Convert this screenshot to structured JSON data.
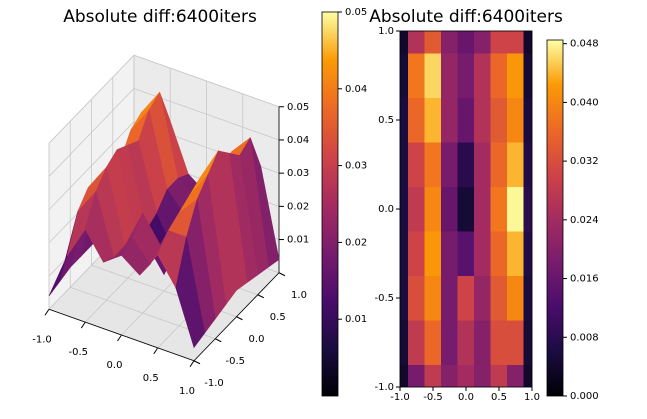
{
  "chart_data": [
    {
      "type": "surface",
      "title": "Absolute diff:6400iters",
      "colormap": "inferno",
      "x": [
        -1,
        -0.75,
        -0.5,
        -0.25,
        0,
        0.25,
        0.5,
        0.75,
        1
      ],
      "y": [
        -1,
        -0.75,
        -0.5,
        -0.25,
        0,
        0.25,
        0.5,
        0.75,
        1
      ],
      "z": [
        [
          0.004,
          0.018,
          0.028,
          0.02,
          0.024,
          0.02,
          0.028,
          0.02,
          0.004
        ],
        [
          0.005,
          0.028,
          0.036,
          0.018,
          0.026,
          0.02,
          0.032,
          0.032,
          0.005
        ],
        [
          0.006,
          0.032,
          0.04,
          0.018,
          0.03,
          0.022,
          0.034,
          0.04,
          0.006
        ],
        [
          0.006,
          0.03,
          0.042,
          0.018,
          0.014,
          0.024,
          0.036,
          0.044,
          0.007
        ],
        [
          0.006,
          0.028,
          0.04,
          0.016,
          0.005,
          0.024,
          0.038,
          0.048,
          0.008
        ],
        [
          0.006,
          0.03,
          0.038,
          0.018,
          0.008,
          0.024,
          0.036,
          0.044,
          0.007
        ],
        [
          0.006,
          0.036,
          0.044,
          0.022,
          0.016,
          0.026,
          0.034,
          0.04,
          0.006
        ],
        [
          0.005,
          0.038,
          0.046,
          0.022,
          0.018,
          0.026,
          0.036,
          0.042,
          0.005
        ],
        [
          0.004,
          0.026,
          0.034,
          0.02,
          0.016,
          0.02,
          0.03,
          0.03,
          0.004
        ]
      ],
      "xlim": [
        -1,
        1
      ],
      "ylim": [
        -1,
        1
      ],
      "zlim": [
        0,
        0.05
      ],
      "xticks": [
        {
          "value": -1,
          "label": "-1.0"
        },
        {
          "value": -0.5,
          "label": "-0.5"
        },
        {
          "value": 0,
          "label": "0.0"
        },
        {
          "value": 0.5,
          "label": "0.5"
        },
        {
          "value": 1,
          "label": "1.0"
        }
      ],
      "yticks": [
        {
          "value": -1,
          "label": "-1.0"
        },
        {
          "value": -0.5,
          "label": "-0.5"
        },
        {
          "value": 0,
          "label": "0.0"
        },
        {
          "value": 0.5,
          "label": "0.5"
        },
        {
          "value": 1,
          "label": "1.0"
        }
      ],
      "zticks": [
        0.01,
        0.02,
        0.03,
        0.04,
        0.05
      ],
      "clim": [
        0,
        0.05
      ],
      "colorbar_ticks": [
        0.01,
        0.02,
        0.03,
        0.04,
        0.05
      ],
      "grid": true
    },
    {
      "type": "contour",
      "title": "Absolute diff:6400iters",
      "colormap": "inferno",
      "x": [
        -1,
        -0.75,
        -0.5,
        -0.25,
        0,
        0.25,
        0.5,
        0.75,
        1
      ],
      "y": [
        -1,
        -0.75,
        -0.5,
        -0.25,
        0,
        0.25,
        0.5,
        0.75,
        1
      ],
      "z": [
        [
          0.004,
          0.018,
          0.028,
          0.02,
          0.024,
          0.02,
          0.028,
          0.02,
          0.004
        ],
        [
          0.005,
          0.028,
          0.036,
          0.018,
          0.026,
          0.02,
          0.032,
          0.032,
          0.005
        ],
        [
          0.006,
          0.032,
          0.04,
          0.018,
          0.03,
          0.022,
          0.034,
          0.04,
          0.006
        ],
        [
          0.006,
          0.03,
          0.042,
          0.018,
          0.014,
          0.024,
          0.036,
          0.044,
          0.007
        ],
        [
          0.006,
          0.028,
          0.04,
          0.016,
          0.005,
          0.024,
          0.038,
          0.048,
          0.008
        ],
        [
          0.006,
          0.03,
          0.038,
          0.018,
          0.008,
          0.024,
          0.036,
          0.044,
          0.007
        ],
        [
          0.006,
          0.036,
          0.044,
          0.022,
          0.016,
          0.026,
          0.034,
          0.04,
          0.006
        ],
        [
          0.005,
          0.038,
          0.046,
          0.022,
          0.018,
          0.026,
          0.036,
          0.042,
          0.005
        ],
        [
          0.004,
          0.026,
          0.034,
          0.02,
          0.016,
          0.02,
          0.03,
          0.03,
          0.004
        ]
      ],
      "xlim": [
        -1,
        1
      ],
      "ylim": [
        -1,
        1
      ],
      "xticks": [
        {
          "value": -1,
          "label": "-1.0"
        },
        {
          "value": -0.5,
          "label": "-0.5"
        },
        {
          "value": 0,
          "label": "0.0"
        },
        {
          "value": 0.5,
          "label": "0.5"
        },
        {
          "value": 1,
          "label": "1.0"
        }
      ],
      "yticks": [
        {
          "value": -1,
          "label": "-1.0"
        },
        {
          "value": -0.5,
          "label": "-0.5"
        },
        {
          "value": 0,
          "label": "0.0"
        },
        {
          "value": 0.5,
          "label": "0.5"
        },
        {
          "value": 1,
          "label": "1.0"
        }
      ],
      "clim": [
        0,
        0.0485
      ],
      "colorbar_ticks": [
        {
          "value": 0,
          "label": "0.000"
        },
        {
          "value": 0.008,
          "label": "0.008"
        },
        {
          "value": 0.016,
          "label": "0.016"
        },
        {
          "value": 0.024,
          "label": "0.024"
        },
        {
          "value": 0.032,
          "label": "0.032"
        },
        {
          "value": 0.04,
          "label": "0.040"
        },
        {
          "value": 0.048,
          "label": "0.048"
        }
      ]
    }
  ]
}
